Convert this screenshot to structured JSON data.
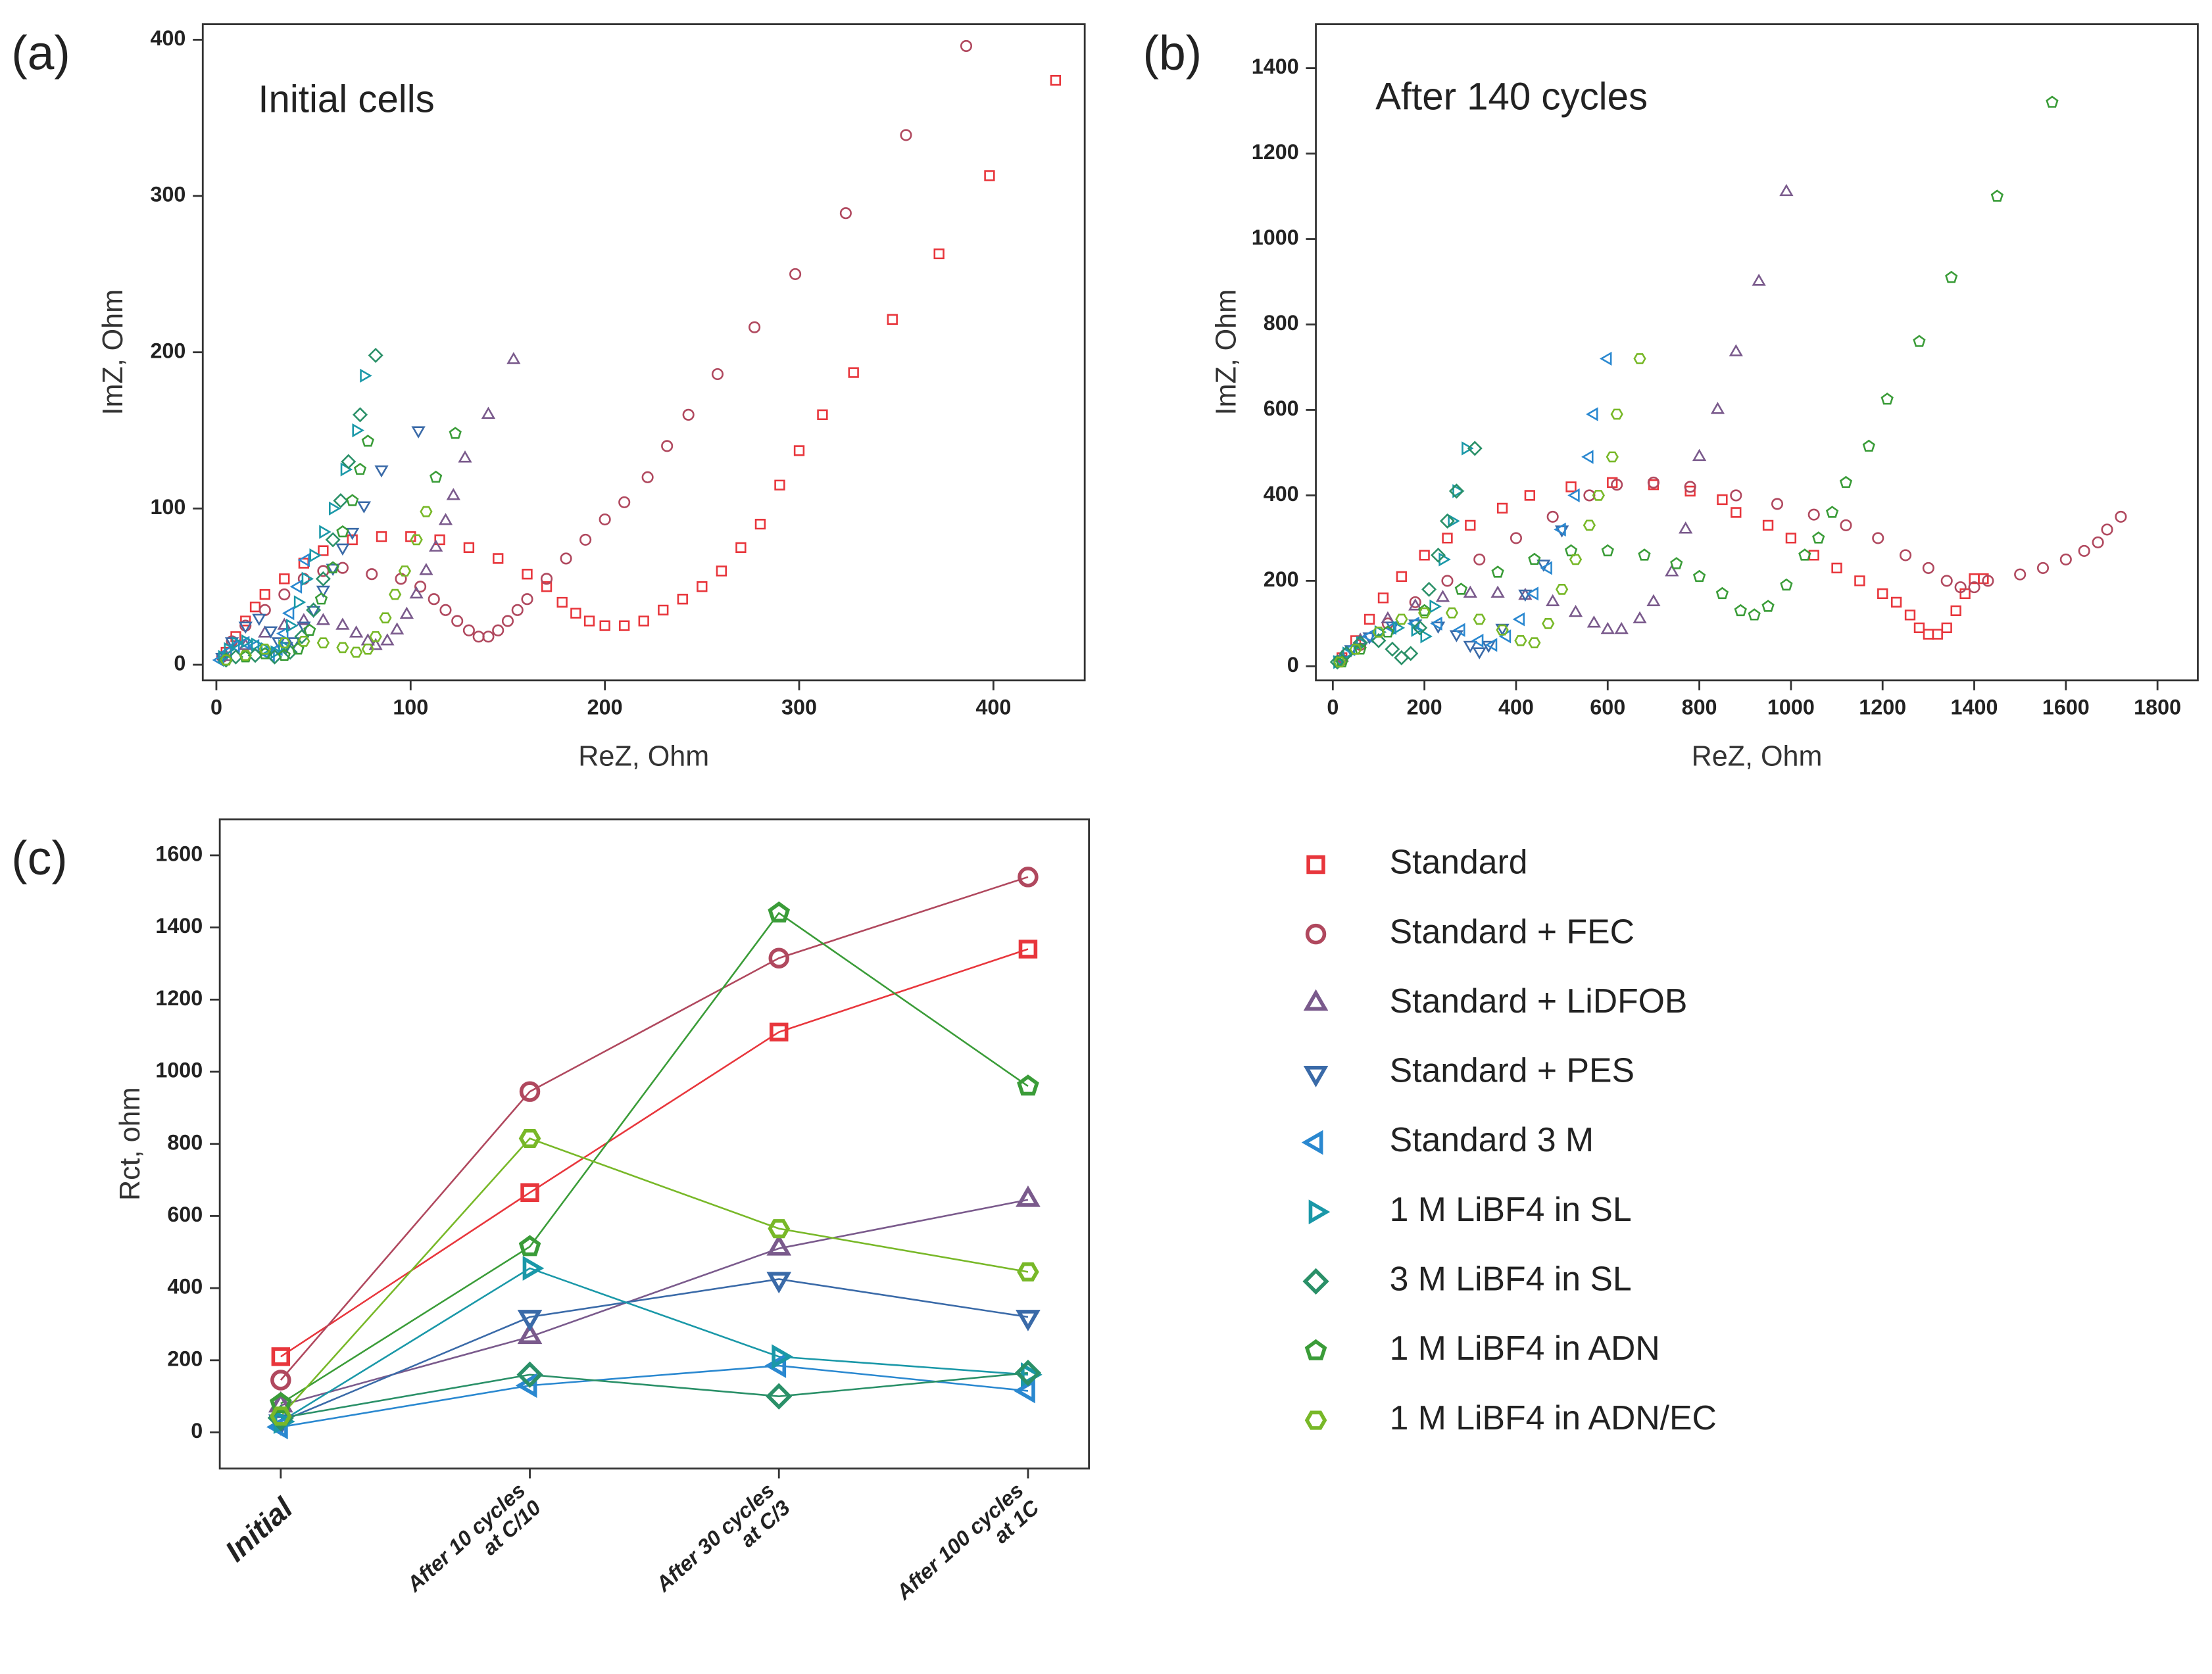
{
  "chart_data": [
    {
      "type": "scatter",
      "panel_label": "(a)",
      "annotation": "Initial cells",
      "x_label": "ReZ, Ohm",
      "y_label": "ImZ, Ohm",
      "xlim": [
        -7,
        447
      ],
      "xticks": [
        0,
        100,
        200,
        300,
        400
      ],
      "ylim": [
        -10,
        410
      ],
      "yticks": [
        0,
        100,
        200,
        300,
        400
      ],
      "series": [
        {
          "color": "#e8363c",
          "marker": "square",
          "x": [
            5,
            10,
            15,
            20,
            25,
            35,
            45,
            55,
            70,
            85,
            100,
            115,
            130,
            145,
            160,
            170,
            178,
            185,
            192,
            200,
            210,
            220,
            230,
            240,
            250,
            260,
            270,
            280,
            290,
            300,
            312,
            328,
            348,
            372,
            398,
            432
          ],
          "y": [
            8,
            18,
            28,
            37,
            45,
            55,
            65,
            73,
            80,
            82,
            82,
            80,
            75,
            68,
            58,
            50,
            40,
            33,
            28,
            25,
            25,
            28,
            35,
            42,
            50,
            60,
            75,
            90,
            115,
            137,
            160,
            187,
            221,
            263,
            313,
            374
          ]
        },
        {
          "color": "#b0485e",
          "marker": "circle",
          "x": [
            3,
            8,
            15,
            25,
            35,
            45,
            55,
            65,
            80,
            95,
            105,
            112,
            118,
            124,
            130,
            135,
            140,
            145,
            150,
            155,
            160,
            170,
            180,
            190,
            200,
            210,
            222,
            232,
            243,
            258,
            277,
            298,
            324,
            355,
            386
          ],
          "y": [
            5,
            15,
            25,
            35,
            45,
            55,
            60,
            62,
            58,
            55,
            50,
            42,
            35,
            28,
            22,
            18,
            18,
            22,
            28,
            35,
            42,
            55,
            68,
            80,
            93,
            104,
            120,
            140,
            160,
            186,
            216,
            250,
            289,
            339,
            396
          ]
        },
        {
          "color": "#7a5a8c",
          "marker": "triangle-up",
          "x": [
            5,
            15,
            25,
            35,
            45,
            55,
            65,
            72,
            78,
            82,
            88,
            93,
            98,
            103,
            108,
            113,
            118,
            122,
            128,
            140,
            153
          ],
          "y": [
            5,
            12,
            20,
            25,
            28,
            28,
            25,
            20,
            15,
            12,
            15,
            22,
            32,
            45,
            60,
            75,
            92,
            108,
            132,
            160,
            195
          ]
        },
        {
          "color": "#3a6aa8",
          "marker": "triangle-down",
          "x": [
            3,
            8,
            15,
            22,
            28,
            32,
            36,
            40,
            45,
            50,
            55,
            60,
            65,
            70,
            76,
            85,
            104
          ],
          "y": [
            5,
            15,
            25,
            30,
            22,
            15,
            12,
            15,
            25,
            35,
            48,
            62,
            75,
            85,
            102,
            125,
            150
          ]
        },
        {
          "color": "#2a88d0",
          "marker": "triangle-left",
          "x": [
            2,
            6,
            10,
            15,
            20,
            25,
            28,
            32,
            35,
            38,
            42,
            46
          ],
          "y": [
            3,
            8,
            12,
            14,
            12,
            8,
            6,
            10,
            20,
            33,
            50,
            67
          ]
        },
        {
          "color": "#1a98a8",
          "marker": "triangle-right",
          "x": [
            3,
            6,
            10,
            15,
            20,
            25,
            30,
            34,
            38,
            42,
            46,
            50,
            55,
            60,
            66,
            72,
            76
          ],
          "y": [
            5,
            10,
            14,
            15,
            13,
            10,
            8,
            12,
            25,
            40,
            55,
            70,
            85,
            100,
            125,
            150,
            185
          ]
        },
        {
          "color": "#2a9068",
          "marker": "diamond",
          "x": [
            5,
            10,
            20,
            30,
            38,
            44,
            50,
            55,
            60,
            64,
            68,
            74,
            82
          ],
          "y": [
            3,
            5,
            6,
            5,
            8,
            18,
            35,
            55,
            80,
            105,
            130,
            160,
            198
          ]
        },
        {
          "color": "#3a9c38",
          "marker": "pentagon",
          "x": [
            5,
            15,
            25,
            35,
            42,
            48,
            54,
            60,
            65,
            70,
            74,
            78,
            113,
            123
          ],
          "y": [
            3,
            5,
            7,
            6,
            10,
            22,
            42,
            62,
            85,
            105,
            125,
            143,
            120,
            148
          ]
        },
        {
          "color": "#78b828",
          "marker": "hexagon",
          "x": [
            5,
            15,
            25,
            35,
            45,
            55,
            65,
            72,
            78,
            82,
            87,
            92,
            97,
            103,
            108
          ],
          "y": [
            3,
            6,
            10,
            14,
            15,
            14,
            11,
            8,
            10,
            18,
            30,
            45,
            60,
            80,
            98
          ]
        }
      ]
    },
    {
      "type": "scatter",
      "panel_label": "(b)",
      "annotation": "After 140 cycles",
      "x_label": "ReZ, Ohm",
      "y_label": "ImZ, Ohm",
      "xlim": [
        -37,
        1888
      ],
      "xticks": [
        0,
        200,
        400,
        600,
        800,
        1000,
        1200,
        1400,
        1600,
        1800
      ],
      "ylim": [
        -33,
        1503
      ],
      "yticks": [
        0,
        200,
        400,
        600,
        800,
        1000,
        1200,
        1400
      ],
      "series": [
        {
          "color": "#e8363c",
          "marker": "square",
          "x": [
            20,
            50,
            80,
            110,
            150,
            200,
            250,
            300,
            370,
            430,
            520,
            610,
            700,
            780,
            850,
            880,
            950,
            1000,
            1050,
            1100,
            1150,
            1200,
            1230,
            1260,
            1280,
            1300,
            1320,
            1340,
            1360,
            1380,
            1400,
            1420
          ],
          "y": [
            20,
            60,
            110,
            160,
            210,
            260,
            300,
            330,
            370,
            400,
            420,
            430,
            425,
            410,
            390,
            360,
            330,
            300,
            260,
            230,
            200,
            170,
            150,
            120,
            90,
            75,
            75,
            90,
            130,
            170,
            205,
            205
          ]
        },
        {
          "color": "#b0485e",
          "marker": "circle",
          "x": [
            20,
            60,
            120,
            180,
            250,
            320,
            400,
            480,
            560,
            620,
            700,
            780,
            880,
            970,
            1050,
            1120,
            1190,
            1250,
            1300,
            1340,
            1370,
            1400,
            1430,
            1500,
            1550,
            1600,
            1640,
            1670,
            1690,
            1720
          ],
          "y": [
            15,
            50,
            100,
            150,
            200,
            250,
            300,
            350,
            400,
            425,
            430,
            420,
            400,
            380,
            355,
            330,
            300,
            260,
            230,
            200,
            185,
            185,
            200,
            215,
            230,
            250,
            270,
            290,
            320,
            350
          ]
        },
        {
          "color": "#7a5a8c",
          "marker": "triangle-up",
          "x": [
            20,
            60,
            120,
            180,
            240,
            300,
            360,
            420,
            480,
            530,
            570,
            600,
            630,
            670,
            700,
            740,
            770,
            800,
            840,
            880,
            930,
            990
          ],
          "y": [
            20,
            60,
            110,
            140,
            160,
            170,
            170,
            165,
            150,
            125,
            100,
            85,
            85,
            110,
            150,
            220,
            320,
            490,
            600,
            735,
            900,
            1110
          ]
        },
        {
          "color": "#3a6aa8",
          "marker": "triangle-down",
          "x": [
            15,
            40,
            80,
            130,
            180,
            230,
            270,
            300,
            320,
            340,
            370,
            420,
            460,
            500
          ],
          "y": [
            15,
            40,
            70,
            95,
            100,
            95,
            75,
            50,
            35,
            50,
            90,
            170,
            240,
            320
          ]
        },
        {
          "color": "#2a88d0",
          "marker": "triangle-left",
          "x": [
            15,
            40,
            80,
            130,
            180,
            230,
            280,
            320,
            350,
            380,
            410,
            440,
            470,
            500,
            530,
            560,
            570,
            600
          ],
          "y": [
            15,
            40,
            70,
            90,
            100,
            100,
            85,
            60,
            50,
            70,
            110,
            170,
            230,
            320,
            400,
            490,
            590,
            720
          ]
        },
        {
          "color": "#1a98a8",
          "marker": "triangle-right",
          "x": [
            10,
            30,
            60,
            100,
            140,
            180,
            200,
            220,
            240,
            260,
            270,
            290
          ],
          "y": [
            10,
            30,
            55,
            80,
            90,
            85,
            70,
            140,
            250,
            340,
            410,
            510
          ]
        },
        {
          "color": "#2a9068",
          "marker": "diamond",
          "x": [
            10,
            30,
            60,
            100,
            130,
            150,
            170,
            190,
            210,
            230,
            250,
            270,
            310
          ],
          "y": [
            10,
            30,
            55,
            60,
            40,
            20,
            30,
            90,
            180,
            260,
            340,
            410,
            510
          ]
        },
        {
          "color": "#3a9c38",
          "marker": "pentagon",
          "x": [
            20,
            60,
            120,
            200,
            280,
            360,
            440,
            520,
            600,
            680,
            750,
            800,
            850,
            890,
            920,
            950,
            990,
            1030,
            1060,
            1090,
            1120,
            1170,
            1210,
            1280,
            1350,
            1450,
            1570
          ],
          "y": [
            10,
            40,
            80,
            130,
            180,
            220,
            250,
            270,
            270,
            260,
            240,
            210,
            170,
            130,
            120,
            140,
            190,
            260,
            300,
            360,
            430,
            515,
            625,
            760,
            910,
            1100,
            1320
          ]
        },
        {
          "color": "#78b828",
          "marker": "hexagon",
          "x": [
            15,
            50,
            100,
            150,
            200,
            260,
            320,
            370,
            410,
            440,
            470,
            500,
            530,
            560,
            580,
            610,
            620,
            670
          ],
          "y": [
            10,
            40,
            80,
            110,
            125,
            125,
            110,
            85,
            60,
            55,
            100,
            180,
            250,
            330,
            400,
            490,
            590,
            720
          ]
        }
      ]
    },
    {
      "type": "line",
      "panel_label": "(c)",
      "y_label": "Rct, ohm",
      "categories": [
        "Initial",
        "After 10 cycles\nat C/10",
        "After 30 cycles\nat C/3",
        "After 100 cycles\nat 1C"
      ],
      "ylim": [
        -100,
        1700
      ],
      "yticks": [
        0,
        200,
        400,
        600,
        800,
        1000,
        1200,
        1400,
        1600
      ],
      "series": [
        {
          "name": "Standard",
          "color": "#e8363c",
          "marker": "square",
          "values": [
            210,
            665,
            1110,
            1340
          ]
        },
        {
          "name": "Standard + FEC",
          "color": "#b0485e",
          "marker": "circle",
          "values": [
            145,
            945,
            1315,
            1540
          ]
        },
        {
          "name": "Standard + LiDFOB",
          "color": "#7a5a8c",
          "marker": "triangle-up",
          "values": [
            75,
            265,
            510,
            645
          ]
        },
        {
          "name": "Standard + PES",
          "color": "#3a6aa8",
          "marker": "triangle-down",
          "values": [
            30,
            320,
            425,
            320
          ]
        },
        {
          "name": "Standard 3 M",
          "color": "#2a88d0",
          "marker": "triangle-left",
          "values": [
            15,
            130,
            185,
            115
          ]
        },
        {
          "name": "1 M LiBF4 in SL",
          "color": "#1a98a8",
          "marker": "triangle-right",
          "values": [
            30,
            455,
            210,
            160
          ]
        },
        {
          "name": "3 M LiBF4 in SL",
          "color": "#2a9068",
          "marker": "diamond",
          "values": [
            40,
            160,
            100,
            165
          ]
        },
        {
          "name": "1 M LiBF4 in ADN",
          "color": "#3a9c38",
          "marker": "pentagon",
          "values": [
            80,
            515,
            1440,
            960
          ]
        },
        {
          "name": "1 M LiBF4 in ADN/EC",
          "color": "#78b828",
          "marker": "hexagon",
          "values": [
            45,
            815,
            565,
            445
          ]
        }
      ]
    }
  ]
}
